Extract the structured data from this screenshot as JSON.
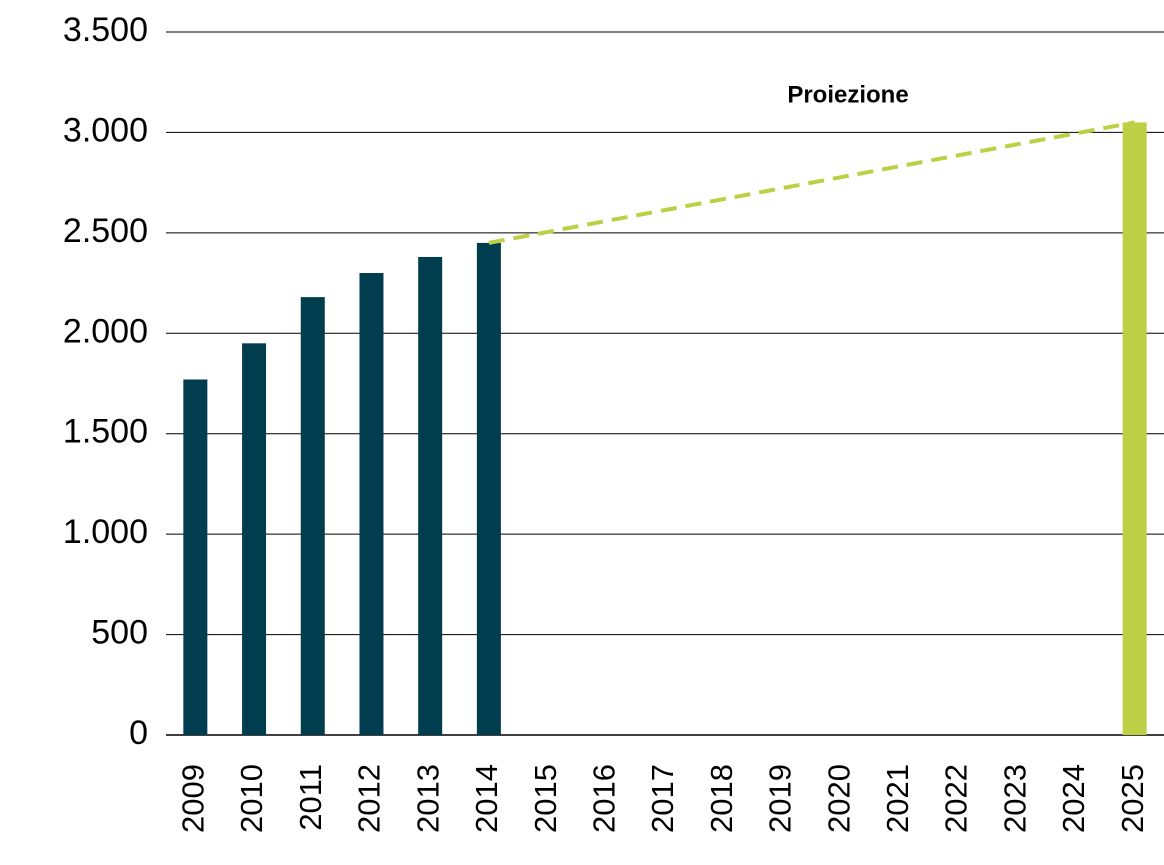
{
  "chart_data": {
    "type": "bar",
    "annotation": "Proiezione",
    "categories": [
      "2009",
      "2010",
      "2011",
      "2012",
      "2013",
      "2014",
      "2015",
      "2016",
      "2017",
      "2018",
      "2019",
      "2020",
      "2021",
      "2022",
      "2023",
      "2024",
      "2025"
    ],
    "values": [
      1770,
      1950,
      2180,
      2300,
      2380,
      2450,
      null,
      null,
      null,
      null,
      null,
      null,
      null,
      null,
      null,
      null,
      3050
    ],
    "colors": [
      "#003d4f",
      "#003d4f",
      "#003d4f",
      "#003d4f",
      "#003d4f",
      "#003d4f",
      null,
      null,
      null,
      null,
      null,
      null,
      null,
      null,
      null,
      null,
      "#bccf45"
    ],
    "trend_line": {
      "from": "2014",
      "to": "2025",
      "color": "#bccf45",
      "dashed": true
    },
    "ylim": [
      0,
      3500
    ],
    "yticks": [
      0,
      500,
      {
        "value": 1000,
        "label": "1.000"
      },
      {
        "value": 1500,
        "label": "1.500"
      },
      {
        "value": 2000,
        "label": "2.000"
      },
      {
        "value": 2500,
        "label": "2.500"
      },
      {
        "value": 3000,
        "label": "3.000"
      },
      {
        "value": 3500,
        "label": "3.500"
      }
    ],
    "grid": true
  }
}
